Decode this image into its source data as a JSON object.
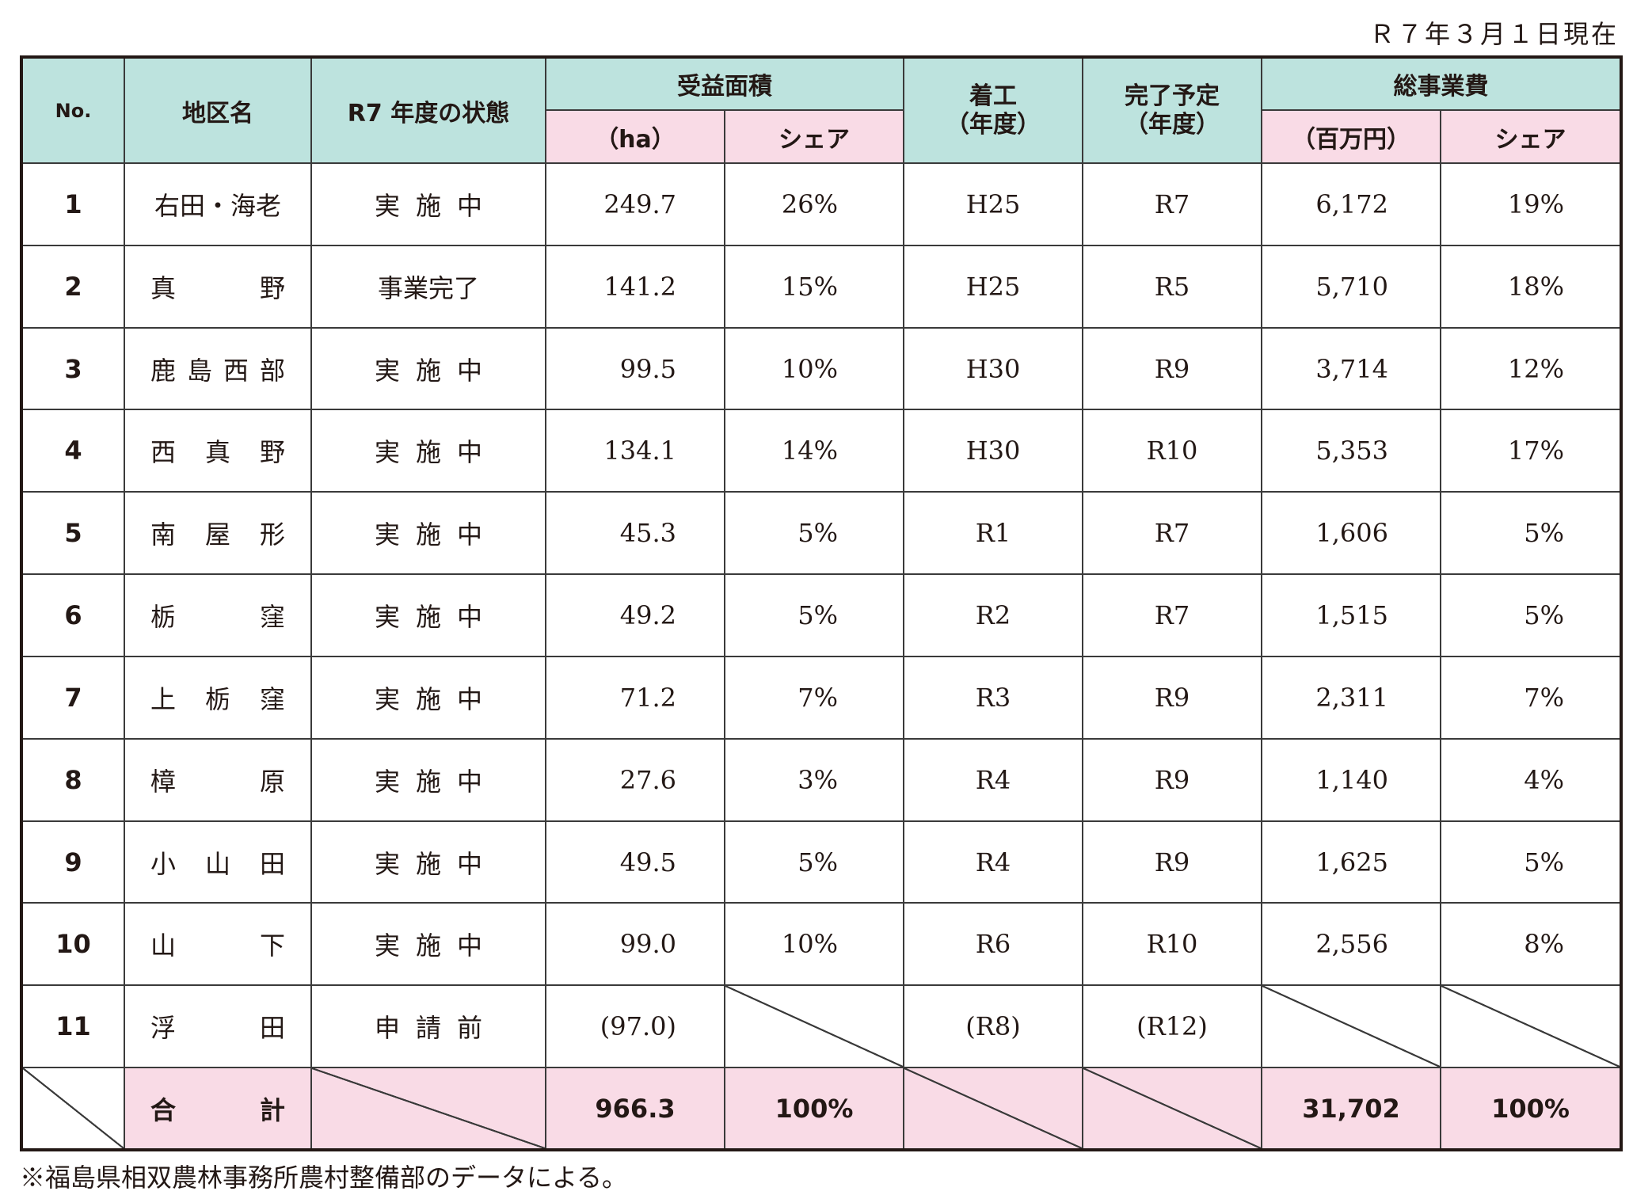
{
  "date_note": "Ｒ７年３月１日現在",
  "headers": {
    "no": "No.",
    "district": "地区名",
    "status": "R7 年度の状態",
    "area_group": "受益面積",
    "area_unit": "（ha）",
    "area_share": "シェア",
    "start_line1": "着工",
    "start_line2": "（年度）",
    "complete_line1": "完了予定",
    "complete_line2": "（年度）",
    "cost_group": "総事業費",
    "cost_unit": "（百万円）",
    "cost_share": "シェア"
  },
  "rows": [
    {
      "no": "1",
      "name": [
        "右田・海老"
      ],
      "status": "実施中",
      "area": "249.7",
      "area_share": "26%",
      "start": "H25",
      "complete": "R7",
      "cost": "6,172",
      "cost_share": "19%"
    },
    {
      "no": "2",
      "name": [
        "真",
        "野"
      ],
      "status": "事業完了",
      "area": "141.2",
      "area_share": "15%",
      "start": "H25",
      "complete": "R5",
      "cost": "5,710",
      "cost_share": "18%"
    },
    {
      "no": "3",
      "name": [
        "鹿",
        "島",
        "西",
        "部"
      ],
      "status": "実施中",
      "area": "99.5",
      "area_share": "10%",
      "start": "H30",
      "complete": "R9",
      "cost": "3,714",
      "cost_share": "12%"
    },
    {
      "no": "4",
      "name": [
        "西",
        "真",
        "野"
      ],
      "status": "実施中",
      "area": "134.1",
      "area_share": "14%",
      "start": "H30",
      "complete": "R10",
      "cost": "5,353",
      "cost_share": "17%"
    },
    {
      "no": "5",
      "name": [
        "南",
        "屋",
        "形"
      ],
      "status": "実施中",
      "area": "45.3",
      "area_share": "5%",
      "start": "R1",
      "complete": "R7",
      "cost": "1,606",
      "cost_share": "5%"
    },
    {
      "no": "6",
      "name": [
        "栃",
        "窪"
      ],
      "status": "実施中",
      "area": "49.2",
      "area_share": "5%",
      "start": "R2",
      "complete": "R7",
      "cost": "1,515",
      "cost_share": "5%"
    },
    {
      "no": "7",
      "name": [
        "上",
        "栃",
        "窪"
      ],
      "status": "実施中",
      "area": "71.2",
      "area_share": "7%",
      "start": "R3",
      "complete": "R9",
      "cost": "2,311",
      "cost_share": "7%"
    },
    {
      "no": "8",
      "name": [
        "樟",
        "原"
      ],
      "status": "実施中",
      "area": "27.6",
      "area_share": "3%",
      "start": "R4",
      "complete": "R9",
      "cost": "1,140",
      "cost_share": "4%"
    },
    {
      "no": "9",
      "name": [
        "小",
        "山",
        "田"
      ],
      "status": "実施中",
      "area": "49.5",
      "area_share": "5%",
      "start": "R4",
      "complete": "R9",
      "cost": "1,625",
      "cost_share": "5%"
    },
    {
      "no": "10",
      "name": [
        "山",
        "下"
      ],
      "status": "実施中",
      "area": "99.0",
      "area_share": "10%",
      "start": "R6",
      "complete": "R10",
      "cost": "2,556",
      "cost_share": "8%"
    },
    {
      "no": "11",
      "name": [
        "浮",
        "田"
      ],
      "status": "申請前",
      "area": "(97.0)",
      "area_share": "",
      "start": "(R8)",
      "complete": "(R12)",
      "cost": "",
      "cost_share": ""
    }
  ],
  "total": {
    "label": [
      "合",
      "計"
    ],
    "area": "966.3",
    "area_share": "100%",
    "cost": "31,702",
    "cost_share": "100%"
  },
  "footnote": "※福島県相双農林事務所農村整備部のデータによる。",
  "colors": {
    "header_teal": "#bde3de",
    "header_pink": "#f9dbe6",
    "border": "#231815"
  }
}
